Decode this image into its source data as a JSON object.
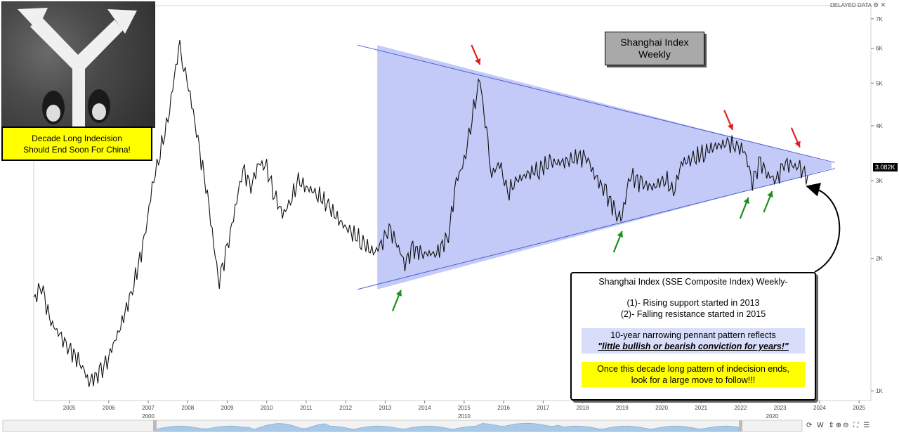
{
  "header": {
    "delayed_label": "DELAYED DATA",
    "top_icons": "⚙ ✕"
  },
  "inset": {
    "photo_icon": "crossroads-arrows-icon",
    "caption_line1": "Decade Long Indecision",
    "caption_line2": "Should End Soon For China!"
  },
  "title_box": {
    "line1": "Shanghai Index",
    "line2": "Weekly"
  },
  "annotation": {
    "line1": "Shanghai Index (SSE Composite Index) Weekly-",
    "line2": "(1)- Rising support started in 2013",
    "line3": "(2)- Falling resistance started in 2015",
    "line4": "10-year narrowing pennant pattern reflects",
    "line5": "\"little bullish or bearish conviction for years!\"",
    "line6": "Once this decade long pattern of indecision ends,",
    "line7": "look for a large move to follow!!!"
  },
  "toolbar": {
    "label": "⟳ W ⇕⊕⊖ ⛶ ☰"
  },
  "colors": {
    "pennant_fill": "#aab4f5",
    "pennant_line": "#4a5fd0",
    "price": "#111111",
    "red_arrow": "#e02020",
    "green_arrow": "#1d8f1d",
    "nav_fill": "#a9c9e8"
  },
  "chart_data": {
    "type": "line",
    "title": "Shanghai Index Weekly",
    "scale": "log",
    "ylim": [
      950,
      7500
    ],
    "xlim": [
      2004.1,
      2025.3
    ],
    "price_label": "3.082K",
    "y_ticks": [
      {
        "value": 1000,
        "label": "1K"
      },
      {
        "value": 2000,
        "label": "2K"
      },
      {
        "value": 3000,
        "label": "3K"
      },
      {
        "value": 4000,
        "label": "4K"
      },
      {
        "value": 5000,
        "label": "5K"
      },
      {
        "value": 6000,
        "label": "6K"
      },
      {
        "value": 7000,
        "label": "7K"
      }
    ],
    "x_ticks": [
      "2005",
      "2006",
      "2007",
      "2008",
      "2009",
      "2010",
      "2011",
      "2012",
      "2013",
      "2014",
      "2015",
      "2016",
      "2017",
      "2018",
      "2019",
      "2020",
      "2021",
      "2022",
      "2023",
      "2024",
      "2025"
    ],
    "navigator_labels": [
      {
        "x": 2007,
        "label": "2000"
      },
      {
        "x": 2015,
        "label": "2010"
      },
      {
        "x": 2022.8,
        "label": "2020"
      }
    ],
    "series": [
      {
        "x": [
          2004.1,
          2004.3,
          2004.5,
          2004.8,
          2005.0,
          2005.3,
          2005.5,
          2005.8,
          2006.0,
          2006.3,
          2006.6,
          2006.9,
          2007.1,
          2007.3,
          2007.5,
          2007.7,
          2007.8,
          2007.9,
          2008.1,
          2008.3,
          2008.5,
          2008.7,
          2008.8,
          2009.0,
          2009.2,
          2009.4,
          2009.6,
          2009.8,
          2010.0,
          2010.2,
          2010.4,
          2010.6,
          2010.8,
          2011.0,
          2011.3,
          2011.6,
          2011.9,
          2012.1,
          2012.4,
          2012.7,
          2012.9,
          2013.1,
          2013.3,
          2013.5,
          2013.7,
          2014.0,
          2014.3,
          2014.6,
          2014.8,
          2015.0,
          2015.2,
          2015.4,
          2015.5,
          2015.6,
          2015.7,
          2015.9,
          2016.1,
          2016.3,
          2016.6,
          2016.9,
          2017.2,
          2017.5,
          2017.9,
          2018.1,
          2018.3,
          2018.6,
          2018.9,
          2019.0,
          2019.2,
          2019.5,
          2019.8,
          2020.1,
          2020.3,
          2020.5,
          2020.8,
          2021.1,
          2021.4,
          2021.7,
          2021.9,
          2022.1,
          2022.3,
          2022.5,
          2022.7,
          2022.9,
          2023.1,
          2023.3,
          2023.5,
          2023.7
        ],
        "values": [
          1600,
          1750,
          1450,
          1320,
          1250,
          1150,
          1050,
          1100,
          1200,
          1400,
          1700,
          2200,
          2900,
          3500,
          4100,
          5500,
          6000,
          5500,
          4500,
          3500,
          2800,
          2000,
          1800,
          2100,
          2600,
          3200,
          2900,
          3300,
          3200,
          2800,
          2500,
          2700,
          3000,
          2900,
          2800,
          2600,
          2400,
          2300,
          2200,
          2050,
          2150,
          2350,
          2150,
          1950,
          2100,
          2050,
          2050,
          2250,
          3000,
          3300,
          4200,
          5100,
          4300,
          3600,
          3100,
          3300,
          2800,
          3000,
          3100,
          3200,
          3300,
          3300,
          3400,
          3400,
          3100,
          2800,
          2500,
          2500,
          3100,
          2950,
          2900,
          3050,
          2800,
          3300,
          3350,
          3500,
          3600,
          3650,
          3600,
          3500,
          3000,
          3300,
          3100,
          3000,
          3300,
          3250,
          3200,
          3082
        ]
      }
    ],
    "pennant": {
      "upper": {
        "x": [
          2012.8,
          2024.3
        ],
        "y": [
          6100,
          3300
        ]
      },
      "lower": {
        "x": [
          2012.8,
          2024.3
        ],
        "y": [
          1700,
          3200
        ]
      }
    },
    "red_arrows": [
      2015.4,
      2021.8,
      2023.5
    ],
    "green_arrows": [
      2013.4,
      2019.0,
      2022.2,
      2022.8
    ]
  }
}
